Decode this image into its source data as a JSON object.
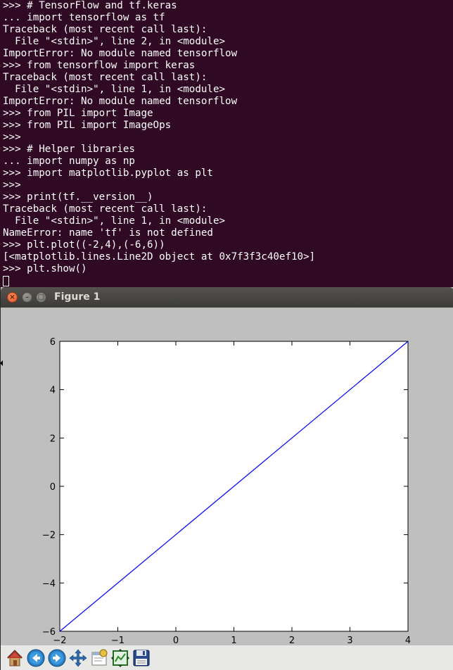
{
  "terminal": {
    "lines": [
      ">>> # TensorFlow and tf.keras",
      "... import tensorflow as tf",
      "Traceback (most recent call last):",
      "  File \"<stdin>\", line 2, in <module>",
      "ImportError: No module named tensorflow",
      ">>> from tensorflow import keras",
      "Traceback (most recent call last):",
      "  File \"<stdin>\", line 1, in <module>",
      "ImportError: No module named tensorflow",
      ">>> from PIL import Image",
      ">>> from PIL import ImageOps",
      ">>>",
      ">>> # Helper libraries",
      "... import numpy as np",
      ">>> import matplotlib.pyplot as plt",
      ">>>",
      ">>> print(tf.__version__)",
      "Traceback (most recent call last):",
      "  File \"<stdin>\", line 1, in <module>",
      "NameError: name 'tf' is not defined",
      ">>> plt.plot((-2,4),(-6,6))",
      "[<matplotlib.lines.Line2D object at 0x7f3f3c40ef10>]",
      ">>> plt.show()"
    ],
    "background": "#300a24",
    "foreground": "#ffffff"
  },
  "figure_window": {
    "title": "Figure 1",
    "close_symbol": "×",
    "minimize_symbol": "–",
    "maximize_symbol": "□",
    "toolbar": [
      {
        "name": "home-button",
        "icon": "home-icon"
      },
      {
        "name": "back-button",
        "icon": "arrow-left-icon"
      },
      {
        "name": "forward-button",
        "icon": "arrow-right-icon"
      },
      {
        "name": "pan-button",
        "icon": "move-icon"
      },
      {
        "name": "zoom-button",
        "icon": "zoom-rect-icon"
      },
      {
        "name": "subplots-button",
        "icon": "subplots-icon"
      },
      {
        "name": "save-button",
        "icon": "floppy-disk-icon"
      }
    ]
  },
  "chart_data": {
    "type": "line",
    "title": "",
    "xlabel": "",
    "ylabel": "",
    "xlim": [
      -2,
      4
    ],
    "ylim": [
      -6,
      6
    ],
    "x_ticks": [
      "−2",
      "−1",
      "0",
      "1",
      "2",
      "3",
      "4"
    ],
    "y_ticks": [
      "−6",
      "−4",
      "−2",
      "0",
      "2",
      "4",
      "6"
    ],
    "x_tick_values": [
      -2,
      -1,
      0,
      1,
      2,
      3,
      4
    ],
    "y_tick_values": [
      -6,
      -4,
      -2,
      0,
      2,
      4,
      6
    ],
    "grid": false,
    "series": [
      {
        "x": [
          -2,
          4
        ],
        "y": [
          -6,
          6
        ],
        "color": "#0000ff"
      }
    ]
  }
}
